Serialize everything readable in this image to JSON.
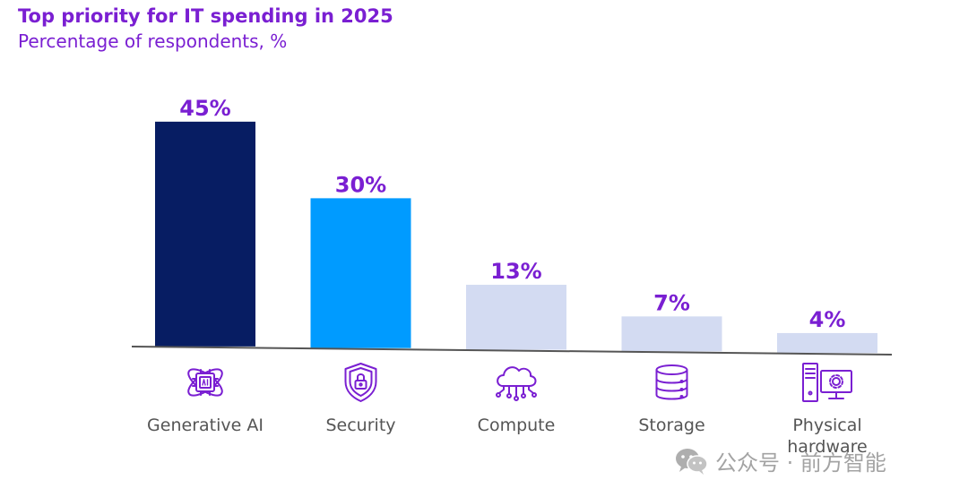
{
  "chart_data": {
    "type": "bar",
    "title": "Top priority for IT spending in 2025",
    "subtitle": "Percentage of respondents, %",
    "categories": [
      {
        "label": "Generative AI",
        "icon": "ai-chip-atom-icon"
      },
      {
        "label": "Security",
        "icon": "shield-lock-icon"
      },
      {
        "label": "Compute",
        "icon": "cloud-circuit-icon"
      },
      {
        "label": "Storage",
        "icon": "database-icon"
      },
      {
        "label": "Physical hardware",
        "icon": "computer-hardware-icon"
      }
    ],
    "values": [
      45,
      30,
      13,
      7,
      4
    ],
    "value_labels": [
      "45%",
      "30%",
      "13%",
      "7%",
      "4%"
    ],
    "bar_colors": [
      "#071d63",
      "#009bff",
      "#d3dbf2",
      "#d3dbf2",
      "#d3dbf2"
    ],
    "ylim": [
      0,
      45
    ],
    "grid": false,
    "accent_color": "#7a1fd2",
    "axis_color": "#555555",
    "label_color": "#555555"
  },
  "watermark": {
    "icon": "wechat-icon",
    "text": "公众号 · 前方智能"
  }
}
